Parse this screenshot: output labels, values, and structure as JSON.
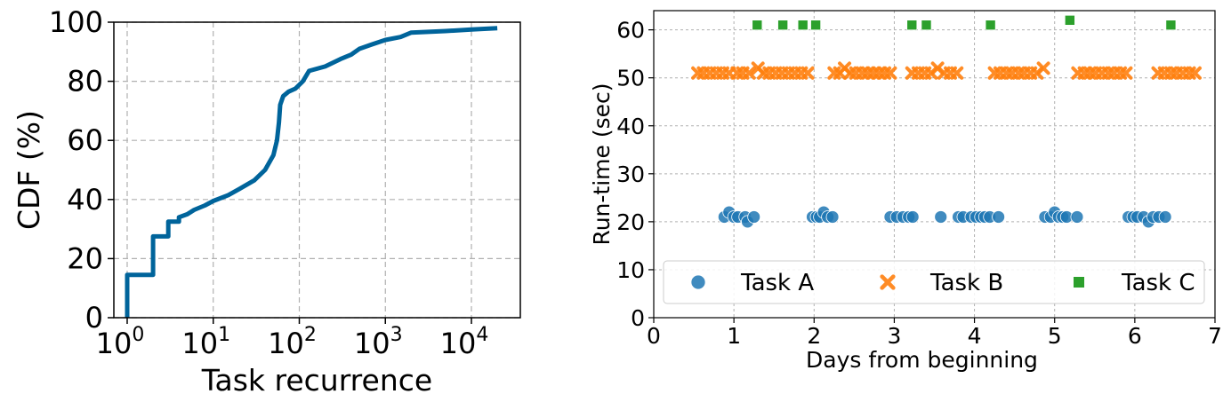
{
  "chart_data": [
    {
      "type": "line",
      "xscale": "log",
      "xlabel": "Task recurrence",
      "ylabel": "CDF (%)",
      "xlim": [
        0.7,
        37000
      ],
      "ylim": [
        0,
        100
      ],
      "grid": true,
      "x_ticks": [
        {
          "value": 1,
          "base": "10",
          "exp": "0"
        },
        {
          "value": 10,
          "base": "10",
          "exp": "1"
        },
        {
          "value": 100,
          "base": "10",
          "exp": "2"
        },
        {
          "value": 1000,
          "base": "10",
          "exp": "3"
        },
        {
          "value": 10000,
          "base": "10",
          "exp": "4"
        }
      ],
      "y_ticks": [
        "0",
        "20",
        "40",
        "60",
        "80",
        "100"
      ],
      "series": [
        {
          "color": "#00649b",
          "points": [
            [
              1,
              0
            ],
            [
              1,
              14.5
            ],
            [
              2,
              14.5
            ],
            [
              2,
              27.5
            ],
            [
              3,
              27.5
            ],
            [
              3,
              32.5
            ],
            [
              4,
              32.5
            ],
            [
              4,
              34
            ],
            [
              5,
              35
            ],
            [
              6,
              36.5
            ],
            [
              8,
              38
            ],
            [
              10,
              39.5
            ],
            [
              15,
              41.5
            ],
            [
              20,
              43.5
            ],
            [
              30,
              46.5
            ],
            [
              40,
              50
            ],
            [
              50,
              55
            ],
            [
              55,
              60
            ],
            [
              58,
              66
            ],
            [
              60,
              72
            ],
            [
              65,
              75
            ],
            [
              75,
              76.5
            ],
            [
              90,
              77.5
            ],
            [
              110,
              80
            ],
            [
              130,
              83.5
            ],
            [
              200,
              85
            ],
            [
              300,
              87.5
            ],
            [
              400,
              89
            ],
            [
              500,
              91
            ],
            [
              700,
              92.5
            ],
            [
              1000,
              94
            ],
            [
              1500,
              95
            ],
            [
              2000,
              96.5
            ],
            [
              5000,
              97
            ],
            [
              10000,
              97.5
            ],
            [
              20000,
              98
            ]
          ]
        }
      ]
    },
    {
      "type": "scatter",
      "xlabel": "Days from beginning",
      "ylabel": "Run-time (sec)",
      "xlim": [
        0,
        7
      ],
      "ylim": [
        0,
        64
      ],
      "grid": true,
      "legend_position": "bottom",
      "x_ticks": [
        "0",
        "1",
        "2",
        "3",
        "4",
        "5",
        "6",
        "7"
      ],
      "y_ticks": [
        "0",
        "10",
        "20",
        "30",
        "40",
        "50",
        "60"
      ],
      "series": [
        {
          "name": "Task A",
          "marker": "circle",
          "color": "#1f77b4",
          "points": [
            [
              0.88,
              21
            ],
            [
              0.94,
              22
            ],
            [
              1.0,
              21
            ],
            [
              1.05,
              21
            ],
            [
              1.14,
              21
            ],
            [
              1.17,
              20
            ],
            [
              1.25,
              21
            ],
            [
              1.98,
              21
            ],
            [
              2.03,
              21
            ],
            [
              2.07,
              21
            ],
            [
              2.12,
              22
            ],
            [
              2.17,
              21
            ],
            [
              2.23,
              21
            ],
            [
              2.95,
              21
            ],
            [
              3.03,
              21
            ],
            [
              3.11,
              21
            ],
            [
              3.18,
              21
            ],
            [
              3.23,
              21
            ],
            [
              3.58,
              21
            ],
            [
              3.8,
              21
            ],
            [
              3.86,
              21
            ],
            [
              3.96,
              21
            ],
            [
              4.02,
              21
            ],
            [
              4.08,
              21
            ],
            [
              4.13,
              21
            ],
            [
              4.19,
              21
            ],
            [
              4.3,
              21
            ],
            [
              4.88,
              21
            ],
            [
              4.95,
              21
            ],
            [
              5.0,
              22
            ],
            [
              5.05,
              21
            ],
            [
              5.1,
              21
            ],
            [
              5.15,
              21
            ],
            [
              5.28,
              21
            ],
            [
              5.92,
              21
            ],
            [
              5.98,
              21
            ],
            [
              6.03,
              21
            ],
            [
              6.11,
              21
            ],
            [
              6.17,
              20
            ],
            [
              6.23,
              21
            ],
            [
              6.3,
              21
            ],
            [
              6.38,
              21
            ]
          ]
        },
        {
          "name": "Task B",
          "marker": "x",
          "color": "#ff7f0e",
          "points": [
            [
              0.55,
              51
            ],
            [
              0.62,
              51
            ],
            [
              0.7,
              51
            ],
            [
              0.78,
              51
            ],
            [
              0.86,
              51
            ],
            [
              0.94,
              51
            ],
            [
              1.04,
              51
            ],
            [
              1.11,
              51
            ],
            [
              1.19,
              51
            ],
            [
              1.3,
              52
            ],
            [
              1.37,
              51
            ],
            [
              1.44,
              51
            ],
            [
              1.52,
              51
            ],
            [
              1.6,
              51
            ],
            [
              1.68,
              51
            ],
            [
              1.76,
              51
            ],
            [
              1.84,
              51
            ],
            [
              1.92,
              51
            ],
            [
              2.25,
              51
            ],
            [
              2.32,
              51
            ],
            [
              2.38,
              52
            ],
            [
              2.45,
              51
            ],
            [
              2.52,
              51
            ],
            [
              2.6,
              51
            ],
            [
              2.67,
              51
            ],
            [
              2.74,
              51
            ],
            [
              2.81,
              51
            ],
            [
              2.88,
              51
            ],
            [
              2.95,
              51
            ],
            [
              3.22,
              51
            ],
            [
              3.3,
              51
            ],
            [
              3.38,
              51
            ],
            [
              3.46,
              51
            ],
            [
              3.54,
              52
            ],
            [
              3.62,
              51
            ],
            [
              3.7,
              51
            ],
            [
              3.78,
              51
            ],
            [
              4.25,
              51
            ],
            [
              4.32,
              51
            ],
            [
              4.4,
              51
            ],
            [
              4.47,
              51
            ],
            [
              4.55,
              51
            ],
            [
              4.62,
              51
            ],
            [
              4.7,
              51
            ],
            [
              4.78,
              51
            ],
            [
              4.86,
              52
            ],
            [
              5.29,
              51
            ],
            [
              5.37,
              51
            ],
            [
              5.44,
              51
            ],
            [
              5.51,
              51
            ],
            [
              5.59,
              51
            ],
            [
              5.67,
              51
            ],
            [
              5.74,
              51
            ],
            [
              5.82,
              51
            ],
            [
              5.89,
              51
            ],
            [
              6.29,
              51
            ],
            [
              6.37,
              51
            ],
            [
              6.45,
              51
            ],
            [
              6.52,
              51
            ],
            [
              6.6,
              51
            ],
            [
              6.68,
              51
            ],
            [
              6.75,
              51
            ]
          ]
        },
        {
          "name": "Task C",
          "marker": "square",
          "color": "#2ca02c",
          "points": [
            [
              1.29,
              61
            ],
            [
              1.61,
              61
            ],
            [
              1.86,
              61
            ],
            [
              2.02,
              61
            ],
            [
              3.22,
              61
            ],
            [
              3.4,
              61
            ],
            [
              4.2,
              61
            ],
            [
              5.19,
              62
            ],
            [
              6.45,
              61
            ]
          ]
        }
      ]
    }
  ]
}
